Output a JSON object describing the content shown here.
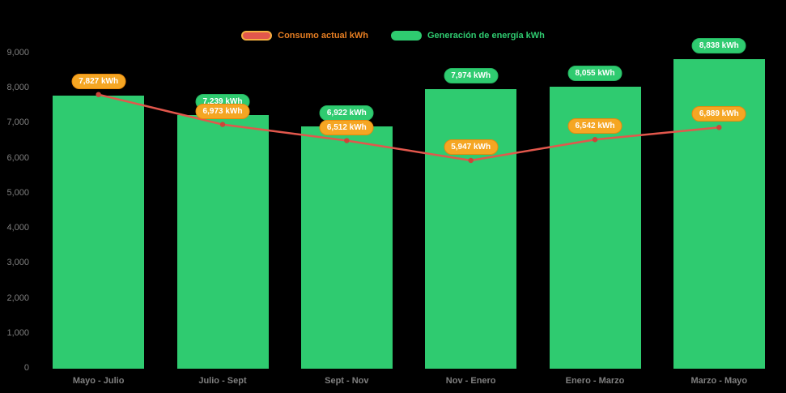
{
  "legend": {
    "items": [
      {
        "label": "Consumo actual kWh",
        "swatch_fill": "#E2574C",
        "swatch_border": "#F5B041",
        "text_color": "#E67E22"
      },
      {
        "label": "Generación de energía kWh",
        "swatch_fill": "#2FCB70",
        "swatch_border": "#2FCB70",
        "text_color": "#2FCB70"
      }
    ]
  },
  "chart_data": {
    "type": "bar+line",
    "title": "",
    "background": "#000000",
    "grid": false,
    "legend_position": "top-center",
    "categories": [
      "Mayo - Julio",
      "Julio - Sept",
      "Sept - Nov",
      "Nov - Enero",
      "Enero - Marzo",
      "Marzo - Mayo"
    ],
    "series": [
      {
        "name": "Generación de energía kWh",
        "type": "bar",
        "color": "#2FCB70",
        "pill_fill": "#2FCB70",
        "pill_border": "#24B560",
        "values": [
          7800,
          7239,
          6922,
          7974,
          8055,
          8838
        ],
        "labels": [
          "",
          "7,239 kWh",
          "6,922 kWh",
          "7,974 kWh",
          "8,055 kWh",
          "8,838 kWh"
        ]
      },
      {
        "name": "Consumo actual kWh",
        "type": "line",
        "color": "#E2574C",
        "marker_color": "#CC4539",
        "pill_fill": "#F5A623",
        "pill_border": "#E8890C",
        "values": [
          7827,
          6973,
          6512,
          5947,
          6542,
          6889
        ],
        "labels": [
          "7,827 kWh",
          "6,973 kWh",
          "6,512 kWh",
          "5,947 kWh",
          "6,542 kWh",
          "6,889 kWh"
        ]
      }
    ],
    "ylim": [
      0,
      9000
    ],
    "yticks": [
      0,
      1000,
      2000,
      3000,
      4000,
      5000,
      6000,
      7000,
      8000,
      9000
    ],
    "ytick_labels": [
      "0",
      "1,000",
      "2,000",
      "3,000",
      "4,000",
      "5,000",
      "6,000",
      "7,000",
      "8,000",
      "9,000"
    ]
  }
}
